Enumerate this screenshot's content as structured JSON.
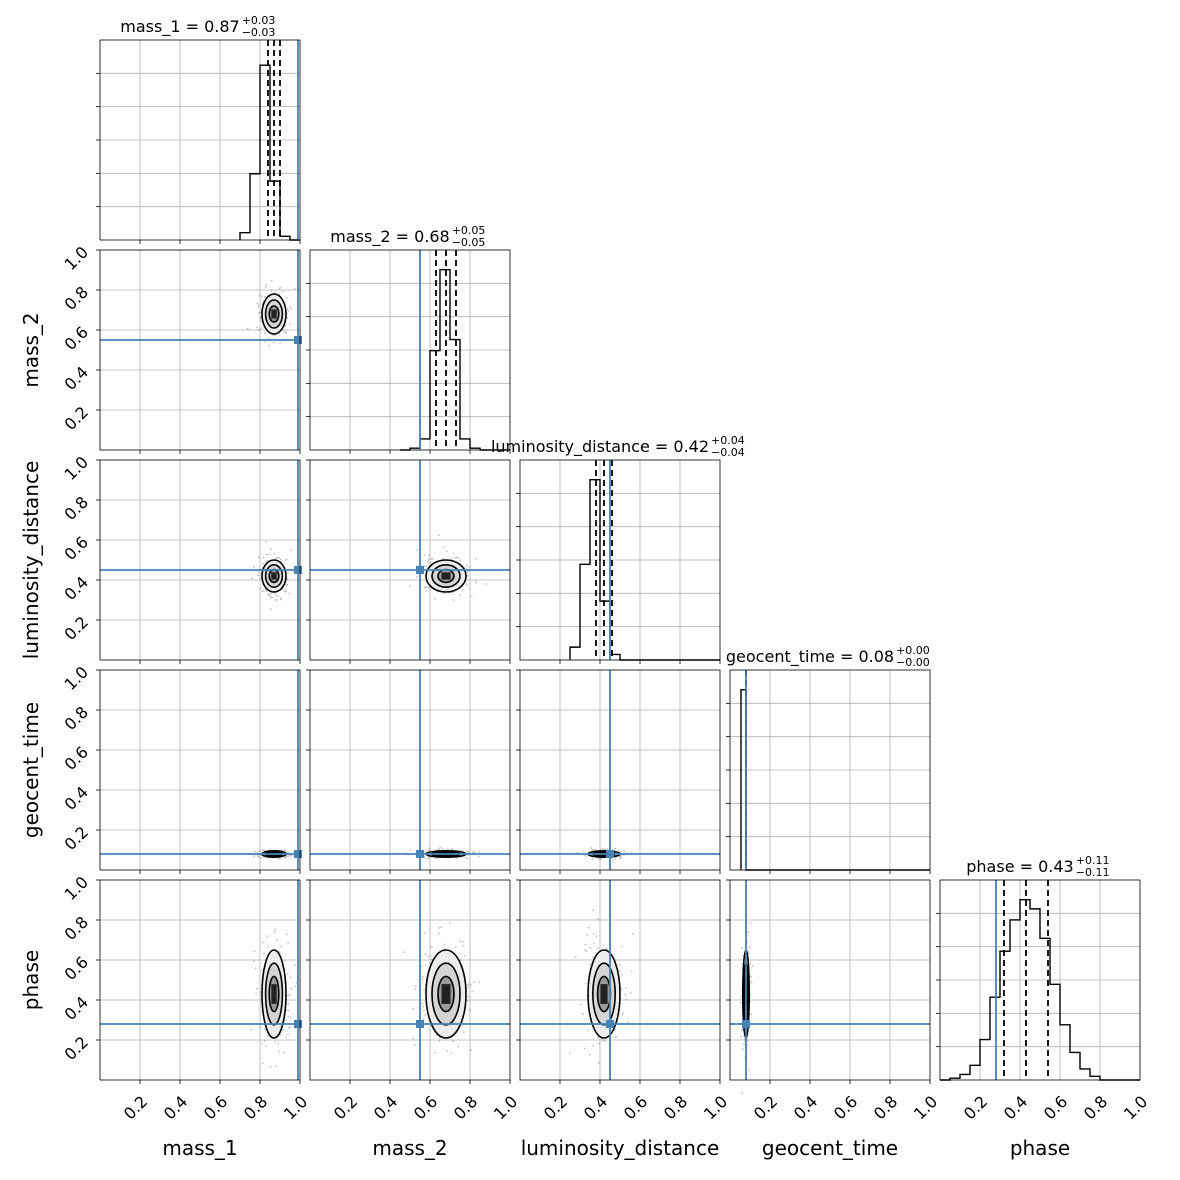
{
  "chart_data": {
    "type": "corner",
    "parameters": [
      "mass_1",
      "mass_2",
      "luminosity_distance",
      "geocent_time",
      "phase"
    ],
    "axis_range": [
      0,
      1
    ],
    "tick_values": [
      0.2,
      0.4,
      0.6,
      0.8,
      1.0
    ],
    "tick_labels": [
      "0.2",
      "0.4",
      "0.6",
      "0.8",
      "1.0"
    ],
    "grid": true,
    "truth_color": "#4682b4",
    "histogram_color": "#000000",
    "marginals": [
      {
        "parameter": "mass_1",
        "title_main": "mass_1 = 0.87",
        "title_plus": "+0.03",
        "title_minus": "−0.03",
        "median": 0.87,
        "lower": 0.84,
        "upper": 0.9,
        "truth": 0.99,
        "bin_edges": [
          0.7,
          0.75,
          0.8,
          0.85,
          0.9,
          0.95,
          1.0
        ],
        "counts": [
          0.04,
          0.36,
          0.95,
          0.32,
          0.02,
          0.0
        ]
      },
      {
        "parameter": "mass_2",
        "title_main": "mass_2 = 0.68",
        "title_plus": "+0.05",
        "title_minus": "−0.05",
        "median": 0.68,
        "lower": 0.63,
        "upper": 0.73,
        "truth": 0.55,
        "bin_edges": [
          0.45,
          0.5,
          0.55,
          0.6,
          0.65,
          0.7,
          0.75,
          0.8,
          0.85
        ],
        "counts": [
          0.0,
          0.01,
          0.06,
          0.54,
          0.98,
          0.6,
          0.06,
          0.01
        ]
      },
      {
        "parameter": "luminosity_distance",
        "title_main": "luminosity_distance = 0.42",
        "title_plus": "+0.04",
        "title_minus": "−0.04",
        "median": 0.42,
        "lower": 0.38,
        "upper": 0.46,
        "truth": 0.45,
        "bin_edges": [
          0.25,
          0.3,
          0.35,
          0.4,
          0.45,
          0.5,
          0.55
        ],
        "counts": [
          0.07,
          0.52,
          0.98,
          0.32,
          0.03,
          0.0
        ]
      },
      {
        "parameter": "geocent_time",
        "title_main": "geocent_time = 0.08",
        "title_plus": "+0.00",
        "title_minus": "−0.00",
        "median": 0.08,
        "lower": 0.08,
        "upper": 0.08,
        "truth": 0.08,
        "bin_edges": [
          0.055,
          0.08,
          0.105
        ],
        "counts": [
          0.98,
          0.0
        ]
      },
      {
        "parameter": "phase",
        "title_main": "phase = 0.43",
        "title_plus": "+0.11",
        "title_minus": "−0.11",
        "median": 0.43,
        "lower": 0.32,
        "upper": 0.54,
        "truth": 0.28,
        "bin_edges": [
          0.0,
          0.05,
          0.1,
          0.15,
          0.2,
          0.25,
          0.3,
          0.35,
          0.4,
          0.45,
          0.5,
          0.55,
          0.6,
          0.65,
          0.7,
          0.75,
          0.8,
          0.85
        ],
        "counts": [
          0.0,
          0.01,
          0.03,
          0.08,
          0.22,
          0.45,
          0.7,
          0.87,
          0.98,
          0.93,
          0.77,
          0.52,
          0.3,
          0.15,
          0.06,
          0.02,
          0.0
        ]
      }
    ],
    "joint_distributions": [
      {
        "x": "mass_1",
        "y": "mass_2",
        "mean": [
          0.87,
          0.68
        ],
        "sd": [
          0.03,
          0.05
        ]
      },
      {
        "x": "mass_1",
        "y": "luminosity_distance",
        "mean": [
          0.87,
          0.42
        ],
        "sd": [
          0.03,
          0.04
        ]
      },
      {
        "x": "mass_2",
        "y": "luminosity_distance",
        "mean": [
          0.68,
          0.42
        ],
        "sd": [
          0.05,
          0.04
        ]
      },
      {
        "x": "mass_1",
        "y": "geocent_time",
        "mean": [
          0.87,
          0.08
        ],
        "sd": [
          0.03,
          0.003
        ]
      },
      {
        "x": "mass_2",
        "y": "geocent_time",
        "mean": [
          0.68,
          0.08
        ],
        "sd": [
          0.05,
          0.003
        ]
      },
      {
        "x": "luminosity_distance",
        "y": "geocent_time",
        "mean": [
          0.42,
          0.08
        ],
        "sd": [
          0.04,
          0.003
        ]
      },
      {
        "x": "mass_1",
        "y": "phase",
        "mean": [
          0.87,
          0.43
        ],
        "sd": [
          0.03,
          0.11
        ]
      },
      {
        "x": "mass_2",
        "y": "phase",
        "mean": [
          0.68,
          0.43
        ],
        "sd": [
          0.05,
          0.11
        ]
      },
      {
        "x": "luminosity_distance",
        "y": "phase",
        "mean": [
          0.42,
          0.43
        ],
        "sd": [
          0.04,
          0.11
        ]
      },
      {
        "x": "geocent_time",
        "y": "phase",
        "mean": [
          0.08,
          0.43
        ],
        "sd": [
          0.003,
          0.11
        ]
      }
    ]
  }
}
